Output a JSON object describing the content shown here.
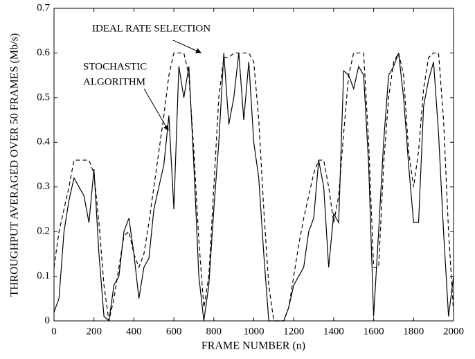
{
  "chart_data": {
    "type": "line",
    "xlabel": "FRAME NUMBER (n)",
    "ylabel": "THROUGHPUT AVERAGED OVER 50 FRAMES (Mb/s)",
    "x": [
      0,
      25,
      50,
      75,
      100,
      125,
      150,
      175,
      200,
      225,
      250,
      275,
      300,
      325,
      350,
      375,
      400,
      425,
      450,
      475,
      500,
      525,
      550,
      575,
      600,
      625,
      650,
      675,
      700,
      725,
      750,
      775,
      800,
      825,
      850,
      875,
      900,
      925,
      950,
      975,
      1000,
      1025,
      1050,
      1075,
      1100,
      1125,
      1150,
      1175,
      1200,
      1225,
      1250,
      1275,
      1300,
      1325,
      1350,
      1375,
      1400,
      1425,
      1450,
      1475,
      1500,
      1525,
      1550,
      1575,
      1600,
      1625,
      1650,
      1675,
      1700,
      1725,
      1750,
      1775,
      1800,
      1825,
      1850,
      1875,
      1900,
      1925,
      1950,
      1975,
      2000
    ],
    "series": [
      {
        "color": "#000000",
        "style": "dashed",
        "values": [
          0.12,
          0.2,
          0.25,
          0.3,
          0.36,
          0.36,
          0.36,
          0.36,
          0.33,
          0.22,
          0.08,
          0,
          0.05,
          0.12,
          0.19,
          0.2,
          0.15,
          0.12,
          0.15,
          0.22,
          0.3,
          0.38,
          0.46,
          0.55,
          0.6,
          0.6,
          0.6,
          0.55,
          0.38,
          0.18,
          0.03,
          0.1,
          0.3,
          0.5,
          0.59,
          0.59,
          0.6,
          0.6,
          0.6,
          0.6,
          0.58,
          0.45,
          0.25,
          0.08,
          0,
          0,
          0,
          0.03,
          0.1,
          0.17,
          0.23,
          0.28,
          0.33,
          0.36,
          0.36,
          0.3,
          0.22,
          0.28,
          0.42,
          0.55,
          0.6,
          0.6,
          0.6,
          0.4,
          0.12,
          0.12,
          0.35,
          0.5,
          0.58,
          0.6,
          0.55,
          0.38,
          0.3,
          0.38,
          0.52,
          0.59,
          0.6,
          0.6,
          0.45,
          0.2,
          0.02
        ]
      },
      {
        "color": "#000000",
        "style": "solid",
        "values": [
          0.02,
          0.05,
          0.2,
          0.27,
          0.32,
          0.3,
          0.28,
          0.22,
          0.34,
          0.15,
          0.01,
          0,
          0.08,
          0.1,
          0.2,
          0.23,
          0.15,
          0.05,
          0.12,
          0.14,
          0.25,
          0.3,
          0.35,
          0.46,
          0.25,
          0.57,
          0.5,
          0.57,
          0.35,
          0.1,
          0,
          0.08,
          0.25,
          0.4,
          0.6,
          0.44,
          0.5,
          0.6,
          0.45,
          0.58,
          0.4,
          0.32,
          0.15,
          0,
          0,
          0,
          0,
          0.03,
          0.08,
          0.1,
          0.12,
          0.2,
          0.23,
          0.36,
          0.3,
          0.12,
          0.24,
          0.22,
          0.56,
          0.55,
          0.52,
          0.57,
          0.55,
          0.35,
          0.01,
          0.2,
          0.4,
          0.55,
          0.57,
          0.6,
          0.5,
          0.35,
          0.22,
          0.22,
          0.48,
          0.54,
          0.58,
          0.42,
          0.2,
          0.01,
          0.1
        ]
      }
    ],
    "annotations": [
      {
        "lines": [
          "IDEAL RATE SELECTION"
        ]
      },
      {
        "lines": [
          "STOCHASTIC",
          "ALGORITHM"
        ]
      }
    ],
    "xlim": [
      0,
      2000
    ],
    "xticks": [
      0,
      200,
      400,
      600,
      800,
      1000,
      1200,
      1400,
      1600,
      1800,
      2000
    ],
    "ylim": [
      0,
      0.7
    ],
    "yticks": [
      0,
      0.1,
      0.2,
      0.3,
      0.4,
      0.5,
      0.6,
      0.7
    ],
    "grid": false
  }
}
